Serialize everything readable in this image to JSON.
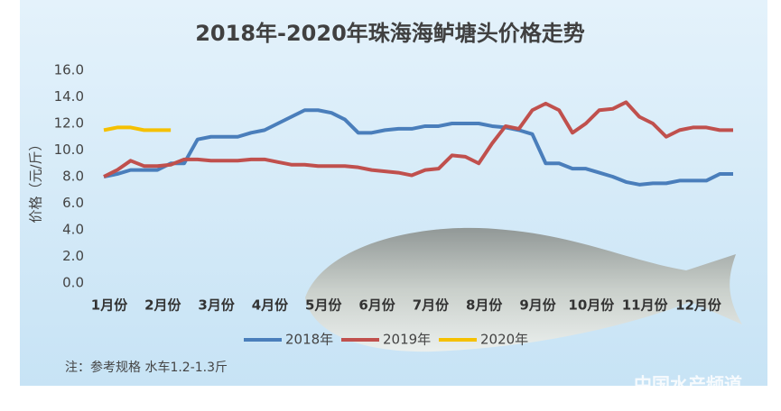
{
  "chart_data": {
    "type": "line",
    "title": "2018年-2020年珠海海鲈塘头价格走势",
    "y_label": "价格（元/斤）",
    "note": "注：参考规格  水车1.2-1.3斤",
    "watermark": "中国水产频道",
    "categories": [
      "1月份",
      null,
      null,
      null,
      "2月份",
      null,
      null,
      null,
      "3月份",
      null,
      null,
      null,
      "4月份",
      null,
      null,
      null,
      "5月份",
      null,
      null,
      null,
      "6月份",
      null,
      null,
      null,
      "7月份",
      null,
      null,
      null,
      "8月份",
      null,
      null,
      null,
      "9月份",
      null,
      null,
      null,
      "10月份",
      null,
      null,
      null,
      "11月份",
      null,
      null,
      null,
      "12月份",
      null,
      null,
      null
    ],
    "ylim": [
      0,
      16
    ],
    "yticks": [
      {
        "value": 0,
        "label": "0.0"
      },
      {
        "value": 2,
        "label": "2.0"
      },
      {
        "value": 4,
        "label": "4.0"
      },
      {
        "value": 6,
        "label": "6.0"
      },
      {
        "value": 8,
        "label": "8.0"
      },
      {
        "value": 10,
        "label": "10.0"
      },
      {
        "value": 12,
        "label": "12.0"
      },
      {
        "value": 14,
        "label": "14.0"
      },
      {
        "value": 16,
        "label": "16.0"
      }
    ],
    "grid": false,
    "series": [
      {
        "name": "2018年",
        "color": "#4a7ebb",
        "values": [
          8.0,
          8.2,
          8.5,
          8.5,
          8.5,
          9.0,
          9.0,
          10.8,
          11.0,
          11.0,
          11.0,
          11.3,
          11.5,
          12.0,
          12.5,
          13.0,
          13.0,
          12.8,
          12.3,
          11.3,
          11.3,
          11.5,
          11.6,
          11.6,
          11.8,
          11.8,
          12.0,
          12.0,
          12.0,
          11.8,
          11.7,
          11.5,
          11.2,
          9.0,
          9.0,
          8.6,
          8.6,
          8.3,
          8.0,
          7.6,
          7.4,
          7.5,
          7.5,
          7.7,
          7.7,
          7.7,
          8.2,
          8.2
        ]
      },
      {
        "name": "2019年",
        "color": "#c0504d",
        "values": [
          8.0,
          8.5,
          9.2,
          8.8,
          8.8,
          8.9,
          9.3,
          9.3,
          9.2,
          9.2,
          9.2,
          9.3,
          9.3,
          9.1,
          8.9,
          8.9,
          8.8,
          8.8,
          8.8,
          8.7,
          8.5,
          8.4,
          8.3,
          8.1,
          8.5,
          8.6,
          9.6,
          9.5,
          9.0,
          10.5,
          11.8,
          11.6,
          13.0,
          13.5,
          13.0,
          11.3,
          12.0,
          13.0,
          13.1,
          13.6,
          12.5,
          12.0,
          11.0,
          11.5,
          11.7,
          11.7,
          11.5,
          11.5
        ]
      },
      {
        "name": "2020年",
        "color": "#f5c000",
        "values": [
          11.5,
          11.7,
          11.7,
          11.5,
          11.5,
          11.5,
          null,
          null,
          null,
          null,
          null,
          null,
          null,
          null,
          null,
          null,
          null,
          null,
          null,
          null,
          null,
          null,
          null,
          null,
          null,
          null,
          null,
          null,
          null,
          null,
          null,
          null,
          null,
          null,
          null,
          null,
          null,
          null,
          null,
          null,
          null,
          null,
          null,
          null,
          null,
          null,
          null,
          null
        ]
      }
    ]
  }
}
